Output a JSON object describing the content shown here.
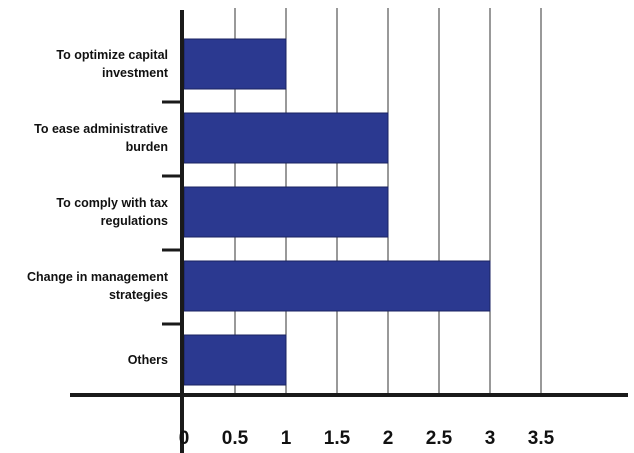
{
  "chart_data": {
    "type": "bar",
    "orientation": "horizontal",
    "categories": [
      [
        "To optimize capital",
        "investment"
      ],
      [
        "To ease administrative",
        "burden"
      ],
      [
        "To comply with tax",
        "regulations"
      ],
      [
        "Change in management",
        "strategies"
      ],
      [
        "Others"
      ]
    ],
    "values": [
      1,
      2,
      2,
      3,
      1
    ],
    "xlim": [
      0,
      3.5
    ],
    "xticks": [
      "0",
      "0.5",
      "1",
      "1.5",
      "2",
      "2.5",
      "3",
      "3.5"
    ],
    "grid": "vertical",
    "bar_color": "#2b3990",
    "title": "",
    "xlabel": "",
    "ylabel": ""
  }
}
